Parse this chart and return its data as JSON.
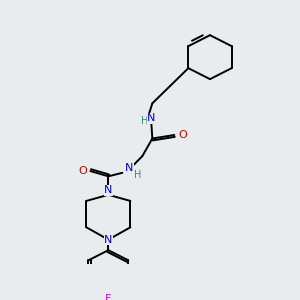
{
  "bg_color": "#e8ecee",
  "atom_colors": {
    "C": "#000000",
    "N": "#0000cc",
    "O": "#cc0000",
    "F": "#dd00dd",
    "H": "#338888"
  },
  "lw": 1.4,
  "fs": 8.0
}
